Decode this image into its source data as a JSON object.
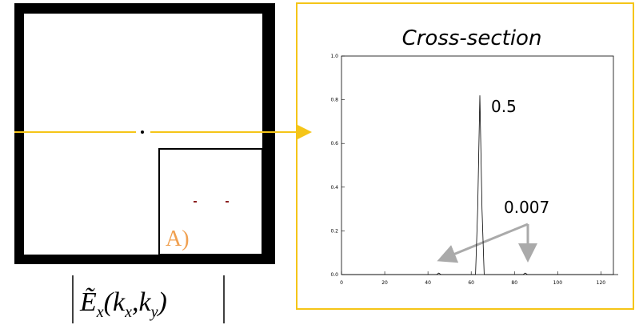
{
  "panel": {
    "label": "A)",
    "caption_parts": [
      "Ẽ",
      "x",
      "(k",
      "x",
      ",k",
      "y",
      ")"
    ]
  },
  "chart_data": {
    "type": "line",
    "title": "Cross-section",
    "series": [
      {
        "color": "#000000",
        "x": [
          0,
          44,
          45,
          46,
          62,
          63,
          64,
          65,
          66,
          84,
          85,
          86,
          128
        ],
        "values": [
          0,
          0,
          0.007,
          0,
          0,
          0.3,
          0.82,
          0.3,
          0,
          0,
          0.007,
          0,
          0
        ]
      }
    ],
    "xlim": [
      0,
      128
    ],
    "xticks": [
      0,
      20,
      40,
      60,
      80,
      100,
      120
    ],
    "ylim": [
      0,
      1
    ],
    "yticks": [
      {
        "value": 0,
        "label": "0.0"
      },
      0.2,
      0.4,
      0.6,
      0.8,
      {
        "value": 1,
        "label": "1.0"
      }
    ],
    "annotations": [
      "0.5",
      "0.007"
    ]
  }
}
